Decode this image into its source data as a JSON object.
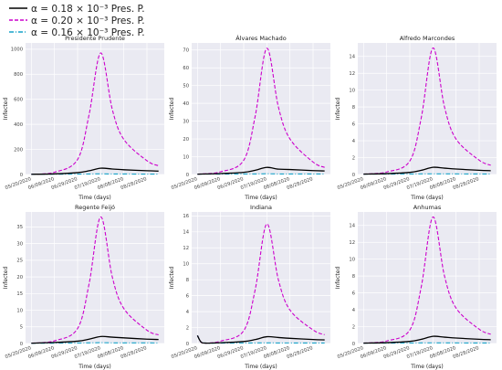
{
  "figure": {
    "legend": [
      {
        "label": "α = 0.18 × 10⁻³ Pres. P.",
        "color": "#000000",
        "dash": "solid"
      },
      {
        "label": "α = 0.20 × 10⁻³ Pres. P.",
        "color": "#cc00cc",
        "dash": "dashed"
      },
      {
        "label": "α = 0.16 × 10⁻³ Pres. P.",
        "color": "#17a2c8",
        "dash": "dashdot"
      }
    ]
  },
  "chart_data": [
    {
      "type": "line",
      "title": "Presidente Prudente",
      "xlabel": "Time (days)",
      "ylabel": "Infected",
      "ylim": [
        0,
        1050
      ],
      "yticks": [
        0,
        200,
        400,
        600,
        800,
        1000
      ],
      "xticks": [
        "05/20/2020",
        "06/09/2020",
        "06/29/2020",
        "07/19/2020",
        "08/08/2020",
        "08/28/2020"
      ],
      "x": [
        "05/20/2020",
        "06/09/2020",
        "06/29/2020",
        "07/09/2020",
        "07/19/2020",
        "07/29/2020",
        "08/08/2020",
        "08/28/2020",
        "09/07/2020"
      ],
      "series": [
        {
          "name": "α = 0.18 × 10⁻³ Pres. P.",
          "values": [
            2,
            5,
            15,
            30,
            50,
            44,
            38,
            30,
            27
          ]
        },
        {
          "name": "α = 0.20 × 10⁻³ Pres. P.",
          "values": [
            2,
            18,
            120,
            480,
            970,
            520,
            280,
            110,
            70
          ]
        },
        {
          "name": "α = 0.16 × 10⁻³ Pres. P.",
          "values": [
            2,
            2,
            3,
            4,
            5,
            4,
            4,
            3,
            3
          ]
        }
      ],
      "grid": true
    },
    {
      "type": "line",
      "title": "Álvares Machado",
      "xlabel": "Time (days)",
      "ylabel": "Infected",
      "ylim": [
        0,
        74
      ],
      "yticks": [
        0,
        10,
        20,
        30,
        40,
        50,
        60,
        70
      ],
      "xticks": [
        "05/20/2020",
        "06/09/2020",
        "06/29/2020",
        "07/19/2020",
        "08/08/2020",
        "08/28/2020"
      ],
      "x": [
        "05/20/2020",
        "06/09/2020",
        "06/29/2020",
        "07/09/2020",
        "07/19/2020",
        "07/29/2020",
        "08/08/2020",
        "08/28/2020",
        "09/07/2020"
      ],
      "series": [
        {
          "name": "α = 0.18 × 10⁻³ Pres. P.",
          "values": [
            0.2,
            0.5,
            1.2,
            2.4,
            4,
            3,
            2.8,
            2.2,
            2
          ]
        },
        {
          "name": "α = 0.20 × 10⁻³ Pres. P.",
          "values": [
            0.2,
            1.5,
            8,
            33,
            71,
            38,
            20,
            7,
            4
          ]
        },
        {
          "name": "α = 0.16 × 10⁻³ Pres. P.",
          "values": [
            0.2,
            0.2,
            0.3,
            0.3,
            0.4,
            0.3,
            0.3,
            0.3,
            0.3
          ]
        }
      ],
      "grid": true
    },
    {
      "type": "line",
      "title": "Alfredo Marcondes",
      "xlabel": "Time (days)",
      "ylabel": "Infected",
      "ylim": [
        0,
        15.6
      ],
      "yticks": [
        0,
        2,
        4,
        6,
        8,
        10,
        12,
        14
      ],
      "xticks": [
        "05/20/2020",
        "06/09/2020",
        "06/29/2020",
        "07/19/2020",
        "08/08/2020",
        "08/28/2020"
      ],
      "x": [
        "05/20/2020",
        "06/09/2020",
        "06/29/2020",
        "07/09/2020",
        "07/19/2020",
        "07/29/2020",
        "08/08/2020",
        "08/28/2020",
        "09/07/2020"
      ],
      "series": [
        {
          "name": "α = 0.18 × 10⁻³ Pres. P.",
          "values": [
            0.05,
            0.1,
            0.25,
            0.5,
            0.85,
            0.75,
            0.65,
            0.5,
            0.45
          ]
        },
        {
          "name": "α = 0.20 × 10⁻³ Pres. P.",
          "values": [
            0.05,
            0.3,
            1.6,
            6.8,
            15,
            8,
            4.2,
            1.7,
            1.1
          ]
        },
        {
          "name": "α = 0.16 × 10⁻³ Pres. P.",
          "values": [
            0.05,
            0.05,
            0.06,
            0.07,
            0.08,
            0.07,
            0.07,
            0.06,
            0.06
          ]
        }
      ],
      "grid": true
    },
    {
      "type": "line",
      "title": "Regente Feijó",
      "xlabel": "Time (days)",
      "ylabel": "Infected",
      "ylim": [
        0,
        39.5
      ],
      "yticks": [
        0,
        5,
        10,
        15,
        20,
        25,
        30,
        35
      ],
      "xticks": [
        "05/20/2020",
        "06/09/2020",
        "06/29/2020",
        "07/19/2020",
        "08/08/2020",
        "08/28/2020"
      ],
      "x": [
        "05/20/2020",
        "06/09/2020",
        "06/29/2020",
        "07/09/2020",
        "07/19/2020",
        "07/29/2020",
        "08/08/2020",
        "08/28/2020",
        "09/07/2020"
      ],
      "series": [
        {
          "name": "α = 0.18 × 10⁻³ Pres. P.",
          "values": [
            0.1,
            0.3,
            0.7,
            1.3,
            2.1,
            1.9,
            1.7,
            1.3,
            1.2
          ]
        },
        {
          "name": "α = 0.20 × 10⁻³ Pres. P.",
          "values": [
            0.1,
            0.8,
            4.5,
            18,
            38,
            20,
            10.5,
            4,
            2.6
          ]
        },
        {
          "name": "α = 0.16 × 10⁻³ Pres. P.",
          "values": [
            0.1,
            0.1,
            0.15,
            0.2,
            0.25,
            0.2,
            0.2,
            0.18,
            0.17
          ]
        }
      ],
      "grid": true
    },
    {
      "type": "line",
      "title": "Indiana",
      "xlabel": "Time (days)",
      "ylabel": "Infected",
      "ylim": [
        0,
        16.5
      ],
      "yticks": [
        0,
        2,
        4,
        6,
        8,
        10,
        12,
        14,
        16
      ],
      "xticks": [
        "05/20/2020",
        "06/09/2020",
        "06/29/2020",
        "07/19/2020",
        "08/08/2020",
        "08/28/2020"
      ],
      "x": [
        "05/20/2020",
        "05/23/2020",
        "05/27/2020",
        "06/09/2020",
        "06/29/2020",
        "07/09/2020",
        "07/19/2020",
        "07/29/2020",
        "08/08/2020",
        "08/28/2020",
        "09/07/2020"
      ],
      "series": [
        {
          "name": "α = 0.18 × 10⁻³ Pres. P.",
          "values": [
            1.0,
            0.2,
            0.05,
            0.1,
            0.25,
            0.5,
            0.85,
            0.75,
            0.65,
            0.5,
            0.45
          ]
        },
        {
          "name": "α = 0.20 × 10⁻³ Pres. P.",
          "values": [
            1.0,
            0.2,
            0.05,
            0.3,
            1.6,
            6.8,
            15,
            8,
            4.2,
            1.7,
            1.1
          ]
        },
        {
          "name": "α = 0.16 × 10⁻³ Pres. P.",
          "values": [
            1.0,
            0.2,
            0.05,
            0.05,
            0.06,
            0.07,
            0.08,
            0.07,
            0.07,
            0.06,
            0.06
          ]
        }
      ],
      "grid": true
    },
    {
      "type": "line",
      "title": "Anhumas",
      "xlabel": "Time (days)",
      "ylabel": "Infected",
      "ylim": [
        0,
        15.6
      ],
      "yticks": [
        0,
        2,
        4,
        6,
        8,
        10,
        12,
        14
      ],
      "xticks": [
        "05/20/2020",
        "06/09/2020",
        "06/29/2020",
        "07/19/2020",
        "08/08/2020",
        "08/28/2020"
      ],
      "x": [
        "05/20/2020",
        "06/09/2020",
        "06/29/2020",
        "07/09/2020",
        "07/19/2020",
        "07/29/2020",
        "08/08/2020",
        "08/28/2020",
        "09/07/2020"
      ],
      "series": [
        {
          "name": "α = 0.18 × 10⁻³ Pres. P.",
          "values": [
            0.05,
            0.1,
            0.25,
            0.5,
            0.85,
            0.75,
            0.65,
            0.5,
            0.45
          ]
        },
        {
          "name": "α = 0.20 × 10⁻³ Pres. P.",
          "values": [
            0.05,
            0.3,
            1.6,
            6.8,
            15,
            8,
            4.2,
            1.7,
            1.1
          ]
        },
        {
          "name": "α = 0.16 × 10⁻³ Pres. P.",
          "values": [
            0.05,
            0.05,
            0.06,
            0.07,
            0.08,
            0.07,
            0.07,
            0.06,
            0.06
          ]
        }
      ],
      "grid": true
    }
  ]
}
